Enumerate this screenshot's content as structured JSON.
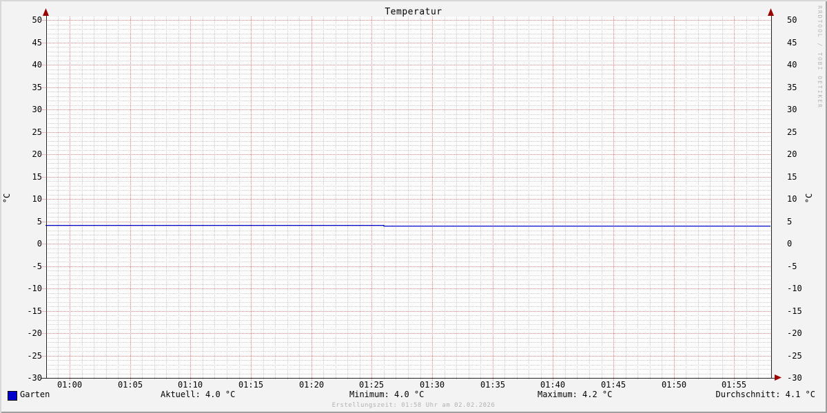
{
  "chart_data": {
    "type": "line",
    "title": "Temperatur",
    "ylabel": "°C",
    "ylim": [
      -30,
      50
    ],
    "y_tick_step": 5,
    "y_minor_step": 1,
    "y_ticks": [
      50,
      45,
      40,
      35,
      30,
      25,
      20,
      15,
      10,
      5,
      0,
      -5,
      -10,
      -15,
      -20,
      -25,
      -30
    ],
    "x_start": "00:58",
    "x_end": "01:58",
    "x_tick_labels": [
      "01:00",
      "01:05",
      "01:10",
      "01:15",
      "01:20",
      "01:25",
      "01:30",
      "01:35",
      "01:40",
      "01:45",
      "01:50",
      "01:55"
    ],
    "x_minor_step_min": 1,
    "grid": true,
    "legend_position": "bottom",
    "series": [
      {
        "name": "Garten",
        "color": "#0000cc",
        "step_segments": [
          {
            "from": "00:58",
            "to": "01:04",
            "value": 4.2
          },
          {
            "from": "01:04",
            "to": "01:26",
            "value": 4.1
          },
          {
            "from": "01:26",
            "to": "01:58",
            "value": 4.0
          }
        ]
      }
    ],
    "stats": {
      "aktuell": "4.0 °C",
      "minimum": "4.0 °C",
      "maximum": "4.2 °C",
      "durchschnitt": "4.1 °C"
    }
  },
  "legend": {
    "series_label": "Garten",
    "aktuell": "Aktuell: 4.0 °C",
    "minimum": "Minimum: 4.0 °C",
    "maximum": "Maximum: 4.2 °C",
    "durchschnitt": "Durchschnitt: 4.1 °C"
  },
  "footer": "Erstellungszeit: 01:58 Uhr am 02.02.2026",
  "watermark": "RRDTOOL / TOBI OETIKER",
  "colors": {
    "series": "#0000cc",
    "arrow": "#990000",
    "major_grid": "#e08080",
    "minor_grid": "#cccccc",
    "axis": "#222222",
    "canvas": "#fdfdfd",
    "background": "#f3f3f3"
  }
}
